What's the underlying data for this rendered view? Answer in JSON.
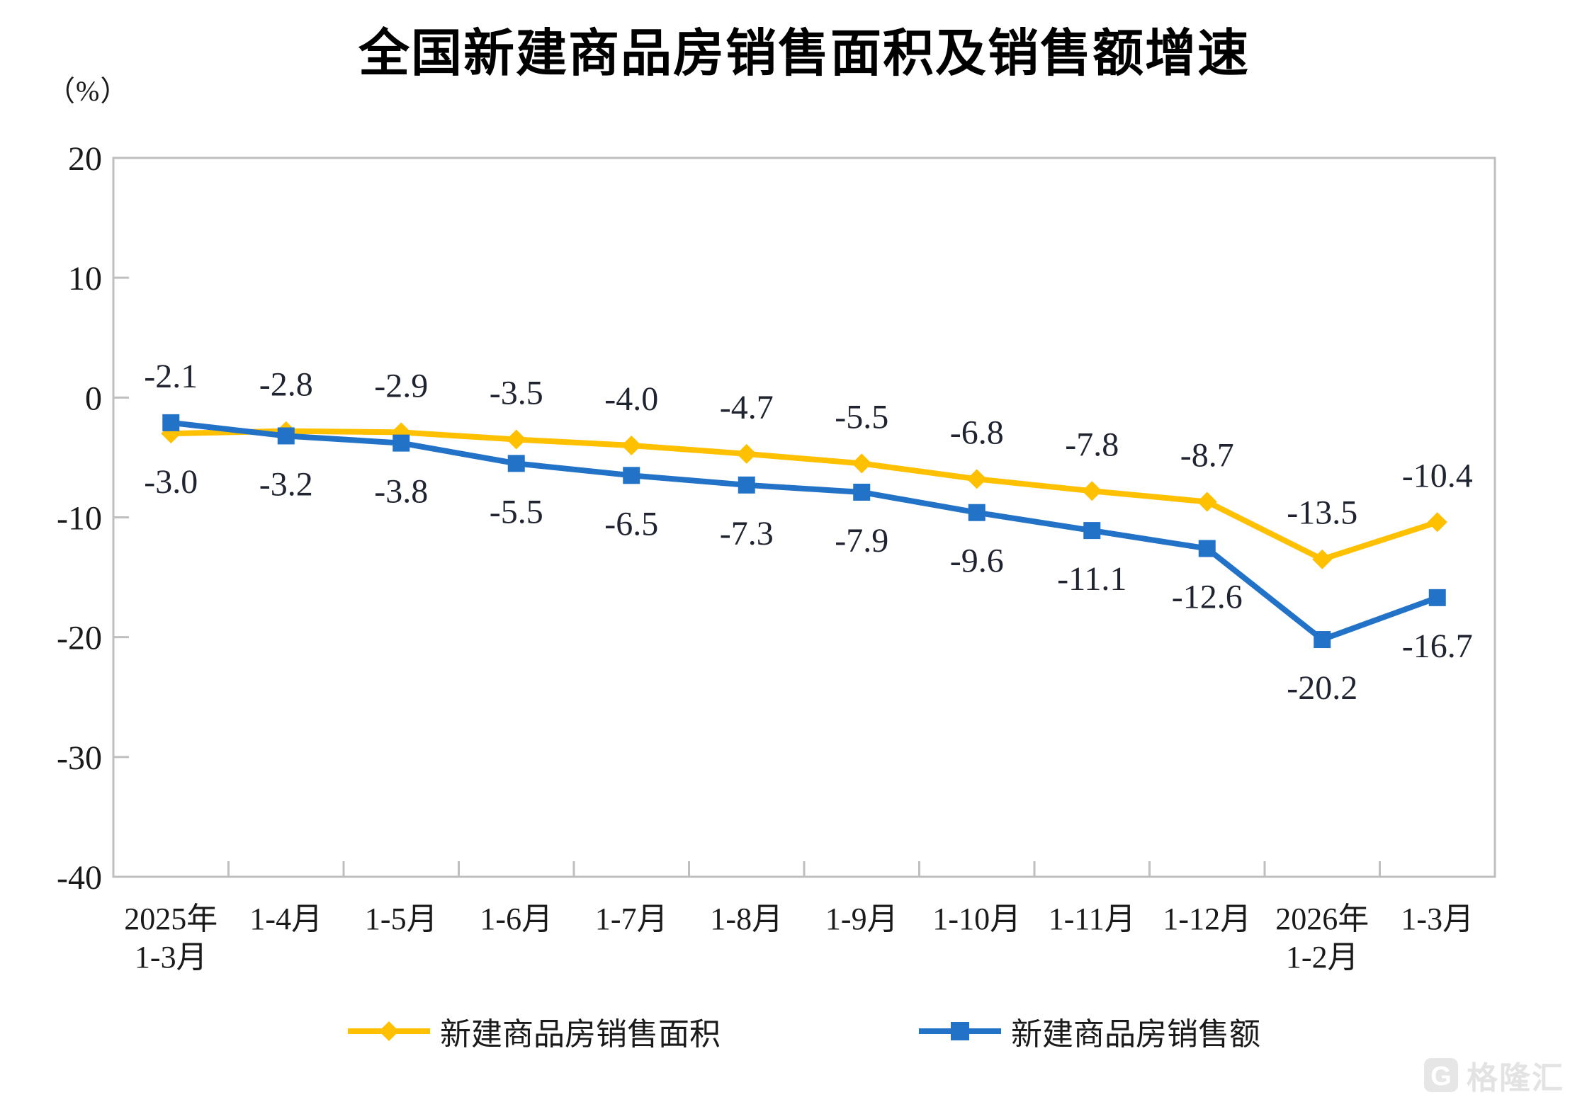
{
  "title": "全国新建商品房销售面积及销售额增速",
  "watermark": {
    "logo_letter": "G",
    "text": "格隆汇"
  },
  "chart": {
    "unit_label": "（%）",
    "colors": {
      "area": "#FFC000",
      "value": "#2272C8",
      "axis": "#BFBFBF",
      "text": "#1a1a1a",
      "data_label": "#1f2430"
    }
  },
  "legend": [
    {
      "label": "新建商品房销售面积",
      "series_key": "area"
    },
    {
      "label": "新建商品房销售额",
      "series_key": "value"
    }
  ],
  "chart_data": {
    "type": "line",
    "title": "全国新建商品房销售面积及销售额增速",
    "unit": "%",
    "ylim": [
      -40,
      20
    ],
    "yticks": [
      20,
      10,
      0,
      -10,
      -20,
      -30,
      -40
    ],
    "grid": false,
    "legend_position": "bottom",
    "categories": [
      [
        "2025年",
        "1-3月"
      ],
      [
        "1-4月"
      ],
      [
        "1-5月"
      ],
      [
        "1-6月"
      ],
      [
        "1-7月"
      ],
      [
        "1-8月"
      ],
      [
        "1-9月"
      ],
      [
        "1-10月"
      ],
      [
        "1-11月"
      ],
      [
        "1-12月"
      ],
      [
        "2026年",
        "1-2月"
      ],
      [
        "1-3月"
      ]
    ],
    "series": [
      {
        "name": "新建商品房销售面积",
        "key": "area",
        "color": "#FFC000",
        "marker": "diamond",
        "values": [
          -3.0,
          -2.8,
          -2.9,
          -3.5,
          -4.0,
          -4.7,
          -5.5,
          -6.8,
          -7.8,
          -8.7,
          -13.5,
          -10.4
        ],
        "label_sides": [
          "below",
          "above",
          "above",
          "above",
          "above",
          "above",
          "above",
          "above",
          "above",
          "above",
          "above",
          "above"
        ]
      },
      {
        "name": "新建商品房销售额",
        "key": "value",
        "color": "#2272C8",
        "marker": "square",
        "values": [
          -2.1,
          -3.2,
          -3.8,
          -5.5,
          -6.5,
          -7.3,
          -7.9,
          -9.6,
          -11.1,
          -12.6,
          -20.2,
          -16.7
        ],
        "label_sides": [
          "above",
          "below",
          "below",
          "below",
          "below",
          "below",
          "below",
          "below",
          "below",
          "below",
          "below",
          "below"
        ]
      }
    ]
  }
}
